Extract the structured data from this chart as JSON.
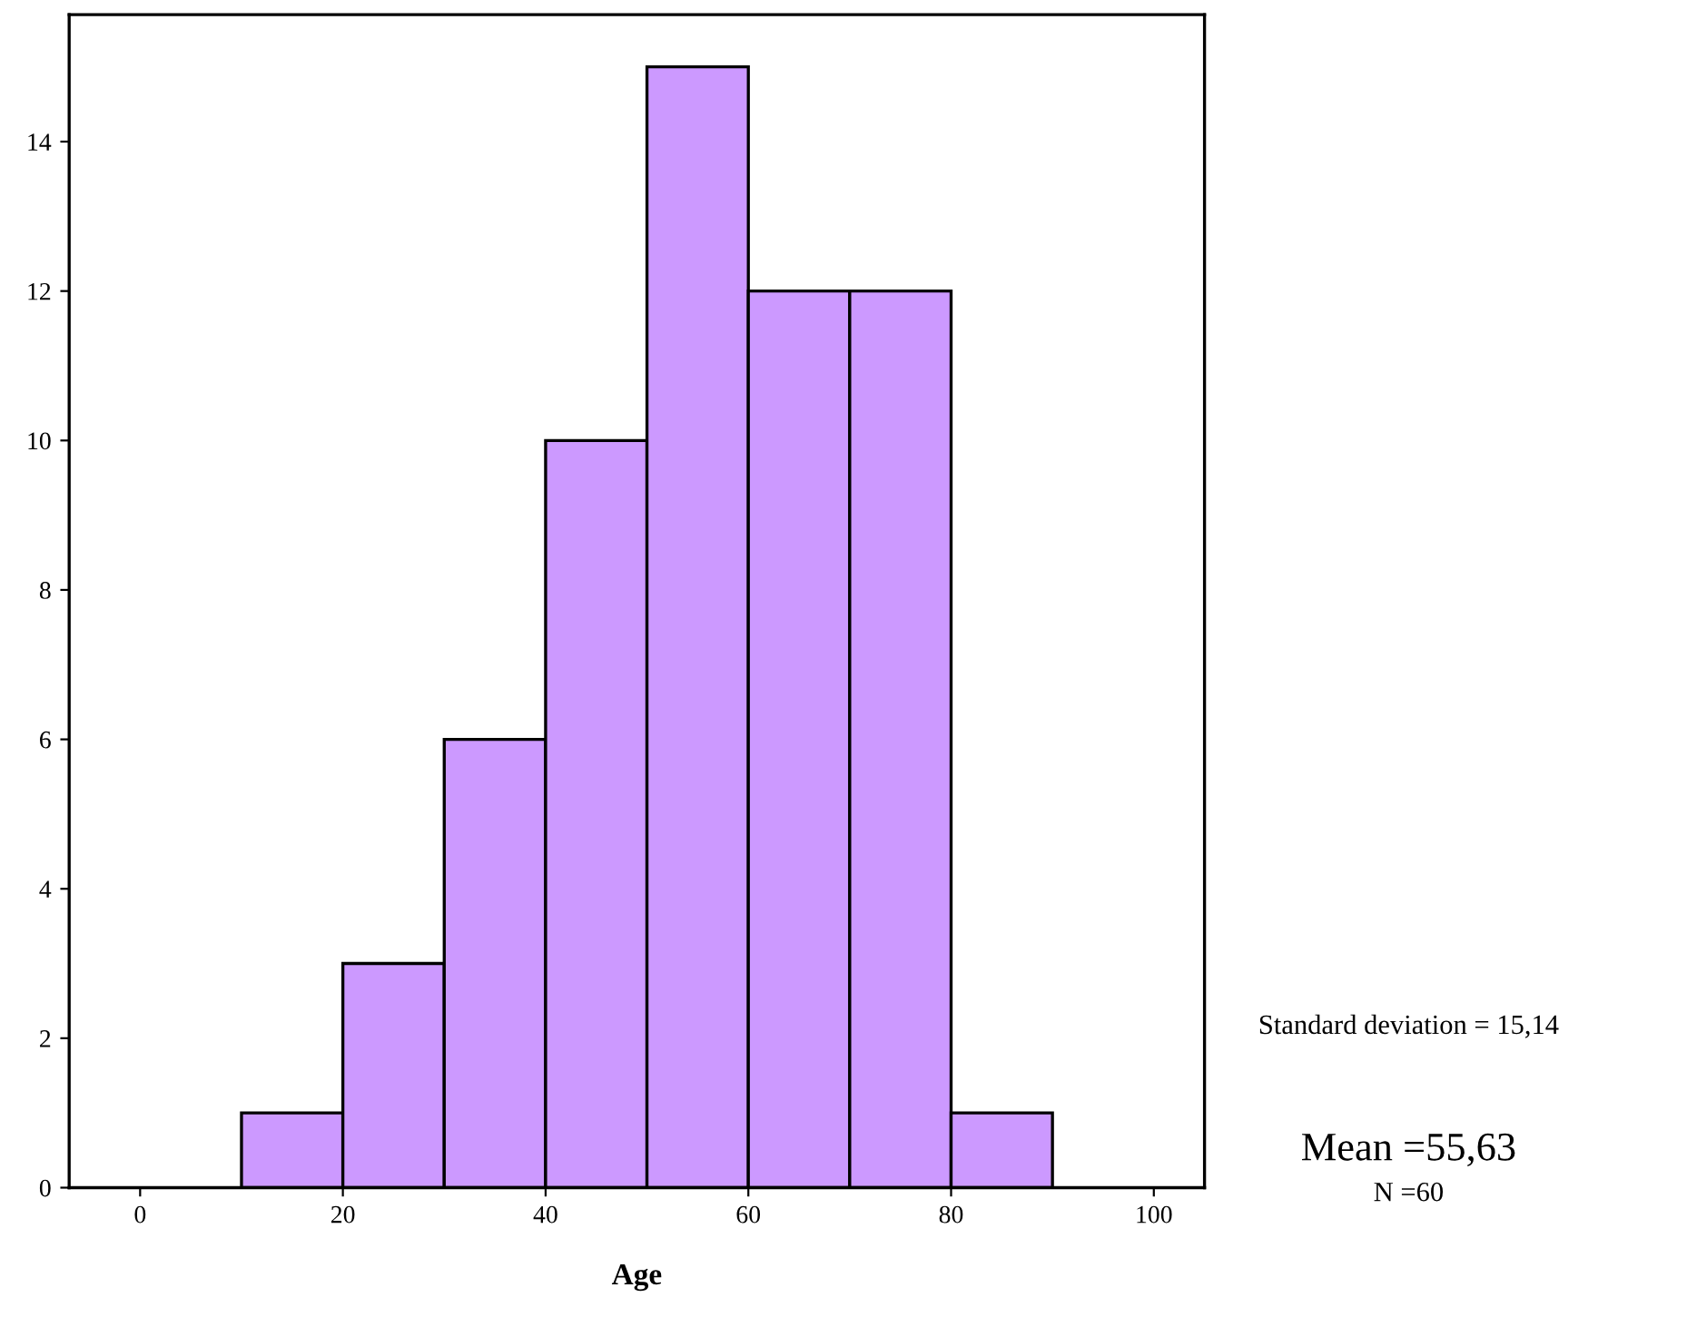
{
  "chart_data": {
    "type": "histogram",
    "xlabel": "Age",
    "bins": [
      10,
      20,
      30,
      40,
      50,
      60,
      70,
      80,
      90
    ],
    "values": [
      1,
      3,
      6,
      10,
      15,
      12,
      12,
      1
    ],
    "color": "#cc99ff",
    "xlim": [
      -7,
      105
    ],
    "xticks": [
      0,
      20,
      40,
      60,
      80,
      100
    ],
    "ylim": [
      0,
      15.7
    ],
    "yticks": [
      0,
      2,
      4,
      6,
      8,
      10,
      12,
      14
    ],
    "grid": false,
    "annotations": [
      "Standard deviation = 15,14",
      "Mean =55,63",
      "N =60"
    ]
  }
}
